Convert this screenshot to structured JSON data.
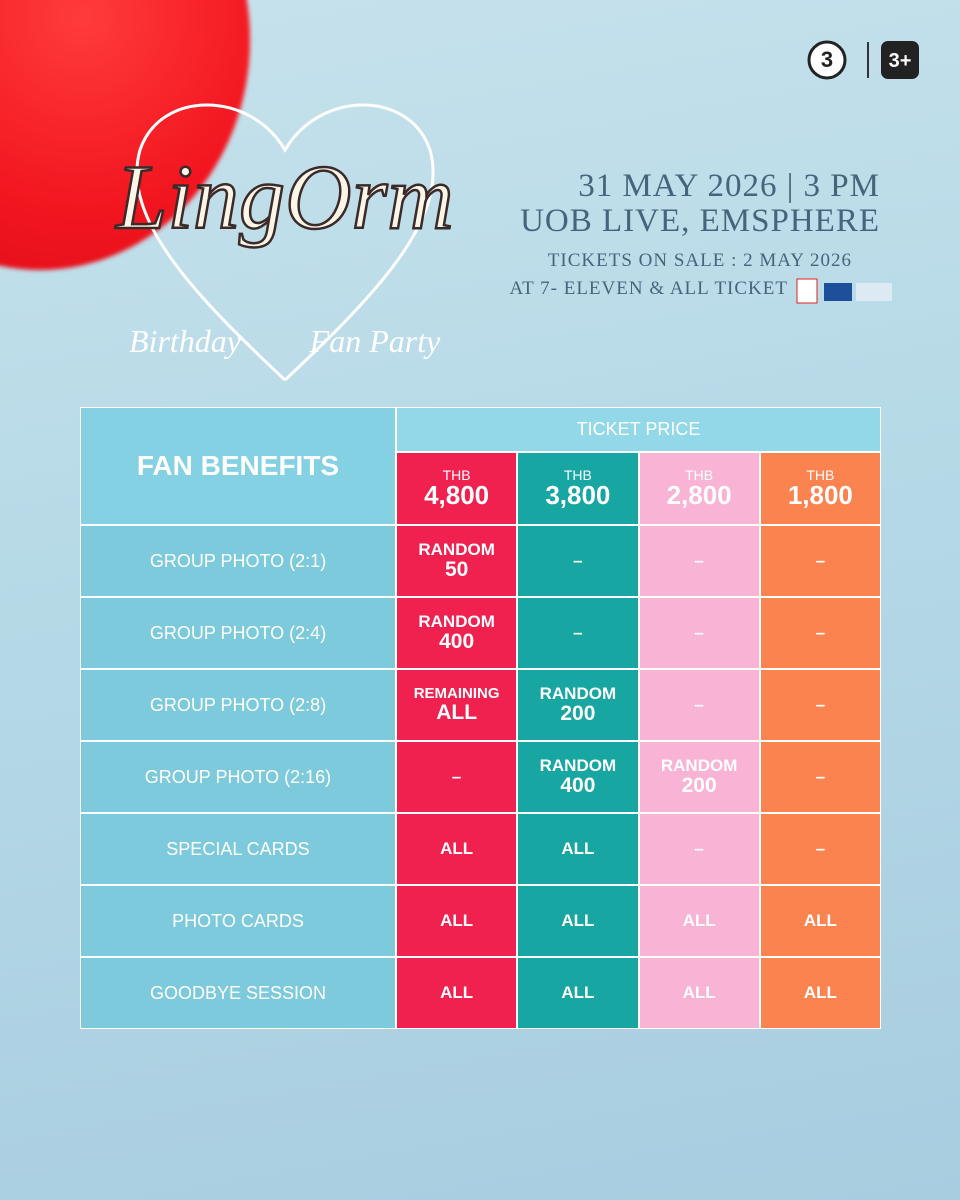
{
  "logo": {
    "title": "LingOrm",
    "subtitle_left": "Birthday",
    "subtitle_right": "Fan Party"
  },
  "channels": [
    "3",
    "3+"
  ],
  "event": {
    "date": "31 MAY 2026 | 3 PM",
    "venue": "UOB LIVE, EMSPHERE",
    "sale": "TICKETS ON SALE : 2 MAY 2026",
    "outlets": "AT 7- ELEVEN & ALL TICKET"
  },
  "table": {
    "benefits_header": "FAN BENEFITS",
    "price_header": "TICKET PRICE",
    "prices": [
      {
        "currency": "THB",
        "amount": "4,800"
      },
      {
        "currency": "THB",
        "amount": "3,800"
      },
      {
        "currency": "THB",
        "amount": "2,800"
      },
      {
        "currency": "THB",
        "amount": "1,800"
      }
    ],
    "rows": [
      {
        "benefit": "GROUP PHOTO (2:1)",
        "cells": [
          [
            "RANDOM",
            "50"
          ],
          [
            "–"
          ],
          [
            "–"
          ],
          [
            "–"
          ]
        ]
      },
      {
        "benefit": "GROUP PHOTO (2:4)",
        "cells": [
          [
            "RANDOM",
            "400"
          ],
          [
            "–"
          ],
          [
            "–"
          ],
          [
            "–"
          ]
        ]
      },
      {
        "benefit": "GROUP PHOTO (2:8)",
        "cells": [
          [
            "REMAINING",
            "ALL"
          ],
          [
            "RANDOM",
            "200"
          ],
          [
            "–"
          ],
          [
            "–"
          ]
        ]
      },
      {
        "benefit": "GROUP PHOTO (2:16)",
        "cells": [
          [
            "–"
          ],
          [
            "RANDOM",
            "400"
          ],
          [
            "RANDOM",
            "200"
          ],
          [
            "–"
          ]
        ]
      },
      {
        "benefit": "SPECIAL CARDS",
        "cells": [
          [
            "ALL"
          ],
          [
            "ALL"
          ],
          [
            "–"
          ],
          [
            "–"
          ]
        ]
      },
      {
        "benefit": "PHOTO CARDS",
        "cells": [
          [
            "ALL"
          ],
          [
            "ALL"
          ],
          [
            "ALL"
          ],
          [
            "ALL"
          ]
        ]
      },
      {
        "benefit": "GOODBYE SESSION",
        "cells": [
          [
            "ALL"
          ],
          [
            "ALL"
          ],
          [
            "ALL"
          ],
          [
            "ALL"
          ]
        ]
      }
    ]
  }
}
